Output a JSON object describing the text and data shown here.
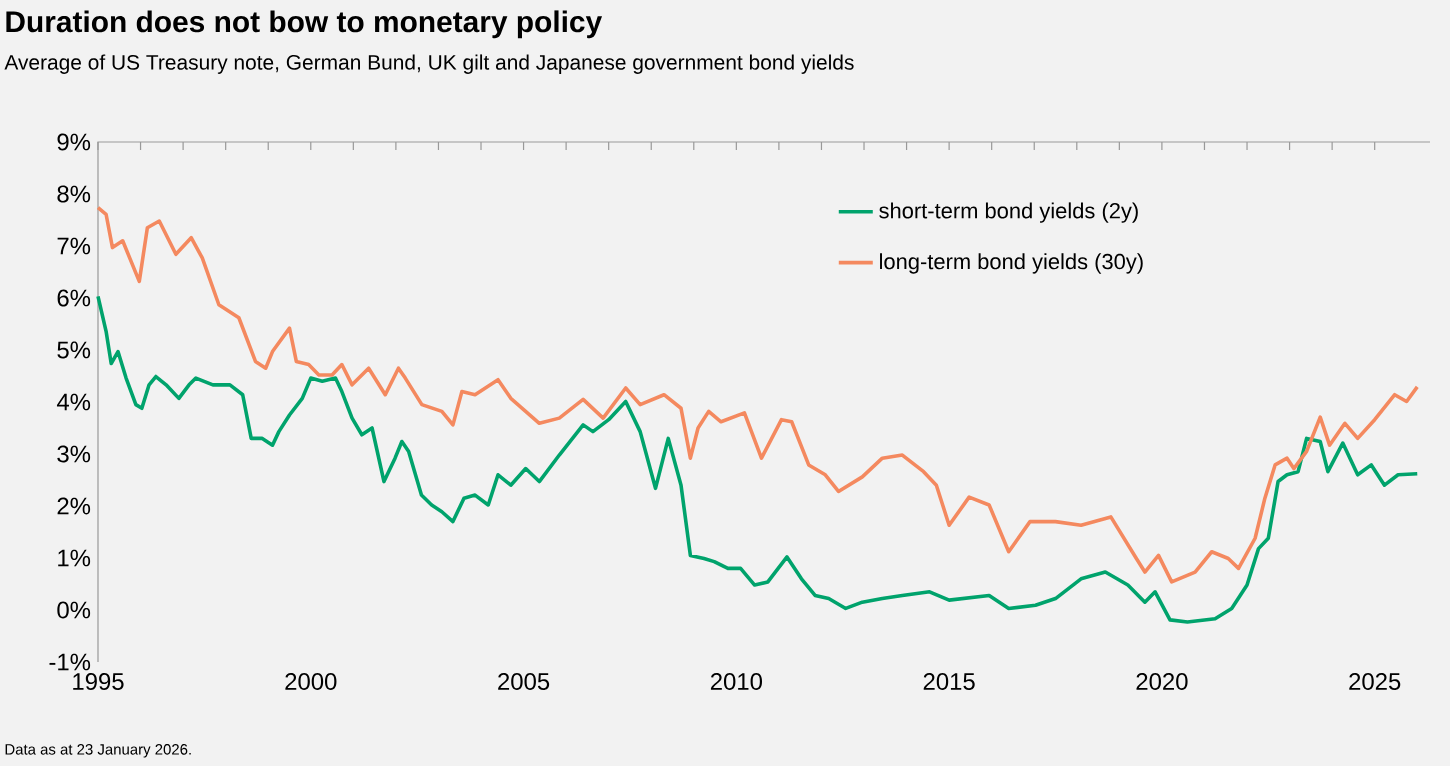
{
  "chart_data": {
    "type": "line",
    "title": "Duration does not bow to monetary policy",
    "subtitle": "Average of US Treasury note, German Bund, UK gilt and Japanese government bond yields",
    "annotations": [
      "Data as at 23 January 2026."
    ],
    "xlim": [
      1995,
      2026.3
    ],
    "xticks": [
      1995,
      2000,
      2005,
      2010,
      2015,
      2020,
      2025
    ],
    "ylim": [
      -1,
      9
    ],
    "yticks": [
      {
        "value": -1,
        "label": "-1%"
      },
      {
        "value": 0,
        "label": "0%"
      },
      {
        "value": 1,
        "label": "1%"
      },
      {
        "value": 2,
        "label": "2%"
      },
      {
        "value": 3,
        "label": "3%"
      },
      {
        "value": 4,
        "label": "4%"
      },
      {
        "value": 5,
        "label": "5%"
      },
      {
        "value": 6,
        "label": "6%"
      },
      {
        "value": 7,
        "label": "7%"
      },
      {
        "value": 8,
        "label": "8%"
      },
      {
        "value": 9,
        "label": "9%"
      }
    ],
    "grid": false,
    "legend": "top right",
    "marker": "none",
    "line_style": "solid",
    "series": [
      {
        "name": "short-term bond yields (2y)",
        "color": "#00a36c",
        "x": [
          1995.0,
          1995.19,
          1995.31,
          1995.47,
          1995.66,
          1995.89,
          1996.03,
          1996.2,
          1996.36,
          1996.6,
          1996.9,
          1997.14,
          1997.3,
          1997.7,
          1998.1,
          1998.4,
          1998.6,
          1998.86,
          1999.1,
          1999.25,
          1999.5,
          1999.8,
          2000.0,
          2000.27,
          2000.58,
          2000.73,
          2000.97,
          2001.2,
          2001.44,
          2001.72,
          2001.98,
          2002.14,
          2002.3,
          2002.6,
          2002.84,
          2003.08,
          2003.34,
          2003.6,
          2003.86,
          2004.17,
          2004.4,
          2004.7,
          2005.05,
          2005.37,
          2005.84,
          2006.4,
          2006.63,
          2007.0,
          2007.4,
          2007.74,
          2008.1,
          2008.4,
          2008.7,
          2008.92,
          2009.24,
          2009.48,
          2009.8,
          2010.1,
          2010.43,
          2010.74,
          2011.19,
          2011.53,
          2011.85,
          2012.17,
          2012.57,
          2012.96,
          2013.43,
          2013.9,
          2014.54,
          2015.0,
          2015.94,
          2016.4,
          2017.03,
          2017.5,
          2018.1,
          2018.67,
          2019.2,
          2019.6,
          2019.84,
          2020.19,
          2020.6,
          2021.25,
          2021.64,
          2022.0,
          2022.27,
          2022.5,
          2022.73,
          2022.94,
          2023.2,
          2023.4,
          2023.72,
          2023.9,
          2024.25,
          2024.6,
          2024.92,
          2025.23,
          2025.55,
          2026.0
        ],
        "values": [
          6.03,
          5.36,
          4.74,
          4.97,
          4.46,
          3.95,
          3.88,
          4.33,
          4.49,
          4.33,
          4.07,
          4.33,
          4.46,
          4.33,
          4.33,
          4.14,
          3.3,
          3.3,
          3.17,
          3.43,
          3.75,
          4.07,
          4.46,
          4.4,
          4.46,
          4.2,
          3.69,
          3.37,
          3.5,
          2.47,
          2.92,
          3.24,
          3.05,
          2.21,
          2.02,
          1.89,
          1.7,
          2.15,
          2.21,
          2.02,
          2.6,
          2.4,
          2.72,
          2.47,
          2.98,
          3.56,
          3.43,
          3.66,
          4.01,
          3.43,
          2.34,
          3.3,
          2.4,
          1.05,
          0.99,
          0.93,
          0.8,
          0.8,
          0.48,
          0.54,
          1.02,
          0.6,
          0.28,
          0.22,
          0.03,
          0.15,
          0.22,
          0.28,
          0.35,
          0.19,
          0.28,
          0.03,
          0.09,
          0.22,
          0.6,
          0.73,
          0.48,
          0.15,
          0.35,
          -0.19,
          -0.23,
          -0.17,
          0.03,
          0.48,
          1.18,
          1.38,
          2.47,
          2.6,
          2.66,
          3.3,
          3.24,
          2.66,
          3.21,
          2.6,
          2.79,
          2.4,
          2.6,
          2.62
        ]
      },
      {
        "name": "long-term bond yields (30y)",
        "color": "#f4895f",
        "x": [
          1995.0,
          1995.19,
          1995.34,
          1995.58,
          1995.97,
          1996.16,
          1996.44,
          1996.83,
          1997.19,
          1997.45,
          1997.84,
          1998.31,
          1998.7,
          1998.94,
          1999.1,
          1999.5,
          1999.66,
          1999.95,
          2000.19,
          2000.5,
          2000.73,
          2000.97,
          2001.36,
          2001.75,
          2002.06,
          2002.22,
          2002.61,
          2003.08,
          2003.34,
          2003.55,
          2003.86,
          2004.4,
          2004.7,
          2005.37,
          2005.84,
          2006.4,
          2006.87,
          2007.4,
          2007.74,
          2008.3,
          2008.7,
          2008.92,
          2009.1,
          2009.35,
          2009.64,
          2010.19,
          2010.59,
          2011.06,
          2011.3,
          2011.7,
          2012.09,
          2012.4,
          2012.96,
          2013.43,
          2013.9,
          2014.4,
          2014.7,
          2015.0,
          2015.47,
          2015.94,
          2016.4,
          2016.9,
          2017.5,
          2018.1,
          2018.8,
          2019.4,
          2019.6,
          2019.92,
          2020.23,
          2020.78,
          2021.17,
          2021.56,
          2021.8,
          2022.19,
          2022.42,
          2022.66,
          2022.94,
          2023.1,
          2023.4,
          2023.72,
          2023.94,
          2024.3,
          2024.6,
          2025.0,
          2025.47,
          2025.75,
          2026.0
        ],
        "values": [
          7.74,
          7.61,
          6.97,
          7.1,
          6.32,
          7.35,
          7.48,
          6.84,
          7.16,
          6.77,
          5.87,
          5.62,
          4.78,
          4.65,
          4.97,
          5.42,
          4.78,
          4.72,
          4.52,
          4.52,
          4.72,
          4.33,
          4.65,
          4.14,
          4.65,
          4.46,
          3.95,
          3.82,
          3.56,
          4.2,
          4.14,
          4.43,
          4.07,
          3.59,
          3.69,
          4.05,
          3.69,
          4.27,
          3.95,
          4.14,
          3.88,
          2.92,
          3.5,
          3.82,
          3.62,
          3.79,
          2.92,
          3.66,
          3.62,
          2.79,
          2.6,
          2.28,
          2.56,
          2.92,
          2.98,
          2.66,
          2.4,
          1.63,
          2.17,
          2.02,
          1.12,
          1.7,
          1.7,
          1.63,
          1.79,
          0.99,
          0.73,
          1.05,
          0.54,
          0.73,
          1.12,
          0.99,
          0.8,
          1.38,
          2.15,
          2.79,
          2.92,
          2.72,
          3.05,
          3.71,
          3.17,
          3.59,
          3.3,
          3.66,
          4.14,
          4.01,
          4.29
        ]
      }
    ]
  }
}
